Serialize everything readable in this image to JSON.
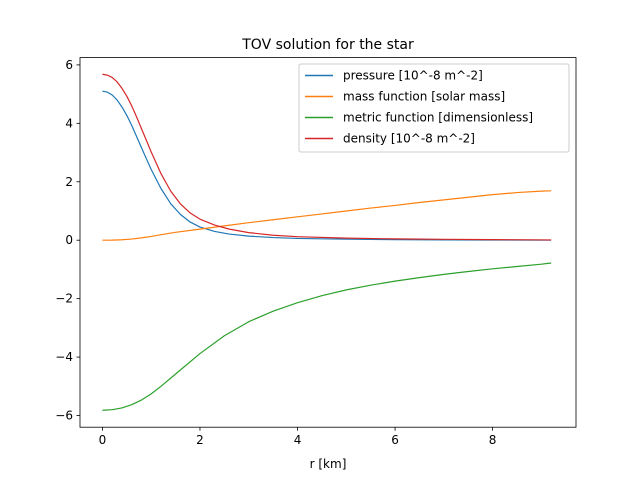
{
  "chart_data": {
    "type": "line",
    "title": "TOV solution for the star",
    "xlabel": "r [km]",
    "ylabel": "",
    "xlim": [
      -0.46,
      9.71
    ],
    "ylim": [
      -6.4,
      6.25
    ],
    "xticks": [
      0,
      2,
      4,
      6,
      8
    ],
    "yticks": [
      -6,
      -4,
      -2,
      0,
      2,
      4,
      6
    ],
    "xtick_labels": [
      "0",
      "2",
      "4",
      "6",
      "8"
    ],
    "ytick_labels": [
      "−6",
      "−4",
      "−2",
      "0",
      "2",
      "4",
      "6"
    ],
    "grid": false,
    "legend_position": "top-right",
    "series": [
      {
        "name": "pressure [10^-8 m^-2]",
        "color": "#1f77b4",
        "points": [
          [
            0,
            5.1
          ],
          [
            0.1,
            5.07
          ],
          [
            0.2,
            4.97
          ],
          [
            0.3,
            4.8
          ],
          [
            0.4,
            4.56
          ],
          [
            0.5,
            4.27
          ],
          [
            0.6,
            3.93
          ],
          [
            0.7,
            3.55
          ],
          [
            0.8,
            3.17
          ],
          [
            0.9,
            2.79
          ],
          [
            1.0,
            2.42
          ],
          [
            1.2,
            1.77
          ],
          [
            1.4,
            1.25
          ],
          [
            1.6,
            0.88
          ],
          [
            1.8,
            0.62
          ],
          [
            2.0,
            0.45
          ],
          [
            2.3,
            0.3
          ],
          [
            2.6,
            0.21
          ],
          [
            3.0,
            0.14
          ],
          [
            3.5,
            0.09
          ],
          [
            4.0,
            0.06
          ],
          [
            5.0,
            0.035
          ],
          [
            6.0,
            0.02
          ],
          [
            7.0,
            0.012
          ],
          [
            8.0,
            0.007
          ],
          [
            9.2,
            0.003
          ]
        ]
      },
      {
        "name": "mass function [solar mass]",
        "color": "#ff7f0e",
        "points": [
          [
            0,
            0
          ],
          [
            0.2,
            0.003
          ],
          [
            0.4,
            0.015
          ],
          [
            0.6,
            0.04
          ],
          [
            0.8,
            0.08
          ],
          [
            1.0,
            0.13
          ],
          [
            1.2,
            0.19
          ],
          [
            1.5,
            0.27
          ],
          [
            2.0,
            0.38
          ],
          [
            2.5,
            0.49
          ],
          [
            3.0,
            0.6
          ],
          [
            3.5,
            0.7
          ],
          [
            4.0,
            0.8
          ],
          [
            4.5,
            0.9
          ],
          [
            5.0,
            1.0
          ],
          [
            5.5,
            1.1
          ],
          [
            6.0,
            1.19
          ],
          [
            6.5,
            1.29
          ],
          [
            7.0,
            1.38
          ],
          [
            7.5,
            1.47
          ],
          [
            8.0,
            1.56
          ],
          [
            8.5,
            1.63
          ],
          [
            9.0,
            1.68
          ],
          [
            9.2,
            1.69
          ]
        ]
      },
      {
        "name": "metric function [dimensionless]",
        "color": "#2ca02c",
        "points": [
          [
            0,
            -5.82
          ],
          [
            0.2,
            -5.8
          ],
          [
            0.4,
            -5.74
          ],
          [
            0.6,
            -5.63
          ],
          [
            0.8,
            -5.47
          ],
          [
            1.0,
            -5.26
          ],
          [
            1.2,
            -5.0
          ],
          [
            1.5,
            -4.58
          ],
          [
            2.0,
            -3.88
          ],
          [
            2.5,
            -3.27
          ],
          [
            3.0,
            -2.79
          ],
          [
            3.5,
            -2.43
          ],
          [
            4.0,
            -2.14
          ],
          [
            4.5,
            -1.9
          ],
          [
            5.0,
            -1.7
          ],
          [
            5.5,
            -1.54
          ],
          [
            6.0,
            -1.4
          ],
          [
            6.5,
            -1.28
          ],
          [
            7.0,
            -1.17
          ],
          [
            7.5,
            -1.07
          ],
          [
            8.0,
            -0.98
          ],
          [
            8.5,
            -0.9
          ],
          [
            9.0,
            -0.82
          ],
          [
            9.2,
            -0.78
          ]
        ]
      },
      {
        "name": "density [10^-8 m^-2]",
        "color": "#d62728",
        "points": [
          [
            0,
            5.68
          ],
          [
            0.1,
            5.65
          ],
          [
            0.2,
            5.57
          ],
          [
            0.3,
            5.42
          ],
          [
            0.4,
            5.2
          ],
          [
            0.5,
            4.93
          ],
          [
            0.6,
            4.6
          ],
          [
            0.7,
            4.22
          ],
          [
            0.8,
            3.82
          ],
          [
            0.9,
            3.42
          ],
          [
            1.0,
            3.02
          ],
          [
            1.2,
            2.28
          ],
          [
            1.4,
            1.68
          ],
          [
            1.6,
            1.24
          ],
          [
            1.8,
            0.93
          ],
          [
            2.0,
            0.72
          ],
          [
            2.3,
            0.52
          ],
          [
            2.6,
            0.38
          ],
          [
            3.0,
            0.26
          ],
          [
            3.5,
            0.17
          ],
          [
            4.0,
            0.12
          ],
          [
            5.0,
            0.07
          ],
          [
            6.0,
            0.045
          ],
          [
            7.0,
            0.03
          ],
          [
            8.0,
            0.02
          ],
          [
            9.2,
            0.01
          ]
        ]
      }
    ]
  }
}
